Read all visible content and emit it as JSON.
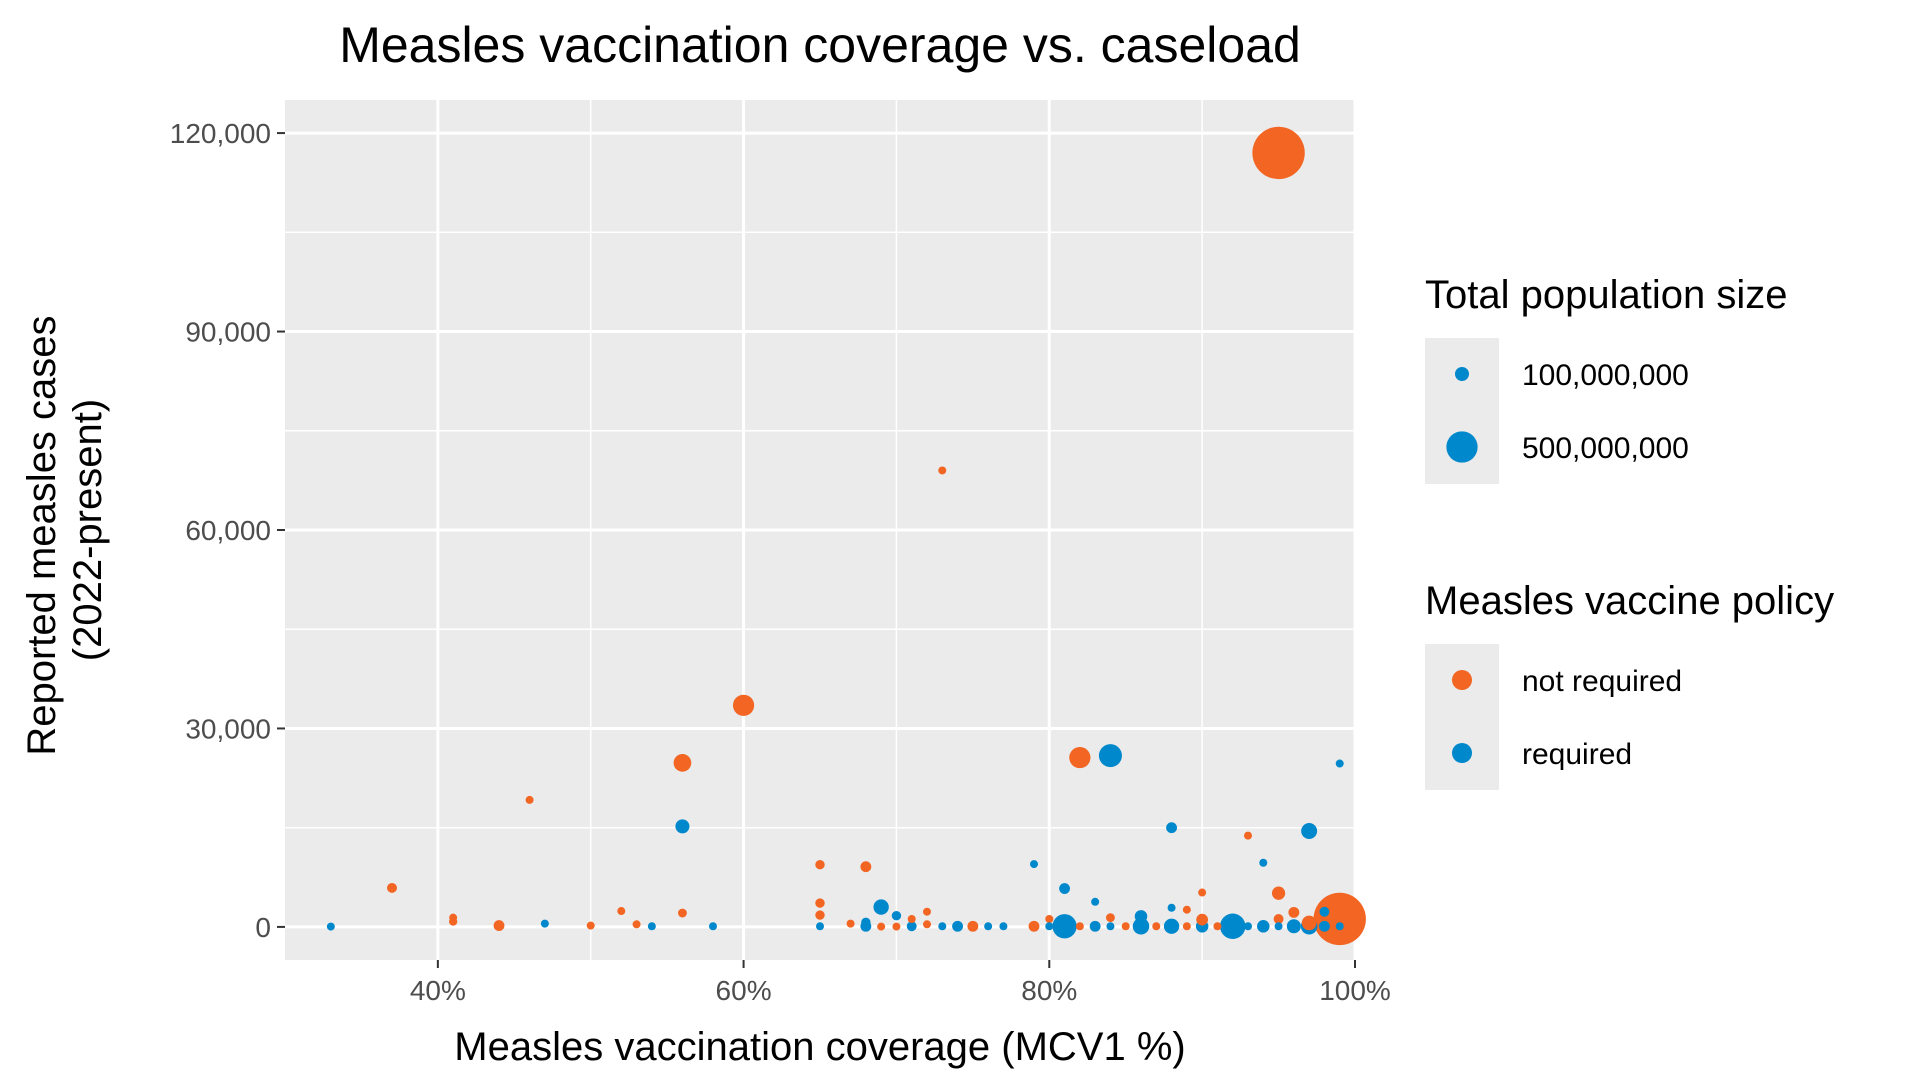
{
  "chart_data": {
    "type": "scatter",
    "title": "Measles vaccination coverage vs. caseload",
    "xlabel": "Measles vaccination coverage (MCV1 %)",
    "ylabel": [
      "Reported measles cases",
      "(2022-present)"
    ],
    "xlim": [
      30,
      100
    ],
    "ylim": [
      -5000,
      125000
    ],
    "xticks": [
      40,
      60,
      80,
      100
    ],
    "xtick_labels": [
      "40%",
      "60%",
      "80%",
      "100%"
    ],
    "yticks": [
      0,
      30000,
      60000,
      90000,
      120000
    ],
    "ytick_labels": [
      "0",
      "30,000",
      "60,000",
      "90,000",
      "120,000"
    ],
    "grid": true,
    "legend_placement": "right",
    "colors": {
      "not_required": "#f26522",
      "required": "#0088cc",
      "panel": "#ebebeb",
      "grid": "#ffffff"
    },
    "size_legend": {
      "title": "Total population size",
      "entries": [
        {
          "label": "100,000,000",
          "value": 100000000
        },
        {
          "label": "500,000,000",
          "value": 500000000
        }
      ]
    },
    "color_legend": {
      "title": "Measles vaccine policy",
      "entries": [
        {
          "label": "not required",
          "key": "not_required"
        },
        {
          "label": "required",
          "key": "required"
        }
      ]
    },
    "points": [
      {
        "x": 95,
        "y": 117000,
        "pop": 1400000000,
        "policy": "not_required"
      },
      {
        "x": 99,
        "y": 1200,
        "pop": 1400000000,
        "policy": "not_required"
      },
      {
        "x": 73,
        "y": 69000,
        "pop": 25000000,
        "policy": "not_required"
      },
      {
        "x": 60,
        "y": 33500,
        "pop": 230000000,
        "policy": "not_required"
      },
      {
        "x": 56,
        "y": 24800,
        "pop": 160000000,
        "policy": "not_required"
      },
      {
        "x": 82,
        "y": 25600,
        "pop": 230000000,
        "policy": "not_required"
      },
      {
        "x": 84,
        "y": 25900,
        "pop": 270000000,
        "policy": "required"
      },
      {
        "x": 46,
        "y": 19200,
        "pop": 25000000,
        "policy": "not_required"
      },
      {
        "x": 99,
        "y": 24700,
        "pop": 25000000,
        "policy": "required"
      },
      {
        "x": 56,
        "y": 15200,
        "pop": 100000000,
        "policy": "required"
      },
      {
        "x": 88,
        "y": 15000,
        "pop": 60000000,
        "policy": "required"
      },
      {
        "x": 97,
        "y": 14500,
        "pop": 130000000,
        "policy": "required"
      },
      {
        "x": 93,
        "y": 13800,
        "pop": 12000000,
        "policy": "not_required"
      },
      {
        "x": 94,
        "y": 9700,
        "pop": 10000000,
        "policy": "required"
      },
      {
        "x": 79,
        "y": 9500,
        "pop": 10000000,
        "policy": "required"
      },
      {
        "x": 65,
        "y": 9400,
        "pop": 45000000,
        "policy": "not_required"
      },
      {
        "x": 68,
        "y": 9100,
        "pop": 60000000,
        "policy": "not_required"
      },
      {
        "x": 37,
        "y": 5900,
        "pop": 50000000,
        "policy": "not_required"
      },
      {
        "x": 81,
        "y": 5800,
        "pop": 60000000,
        "policy": "required"
      },
      {
        "x": 90,
        "y": 5200,
        "pop": 25000000,
        "policy": "not_required"
      },
      {
        "x": 95,
        "y": 5100,
        "pop": 90000000,
        "policy": "not_required"
      },
      {
        "x": 83,
        "y": 3800,
        "pop": 25000000,
        "policy": "required"
      },
      {
        "x": 65,
        "y": 3600,
        "pop": 45000000,
        "policy": "not_required"
      },
      {
        "x": 69,
        "y": 3000,
        "pop": 120000000,
        "policy": "required"
      },
      {
        "x": 88,
        "y": 2900,
        "pop": 30000000,
        "policy": "required"
      },
      {
        "x": 89,
        "y": 2600,
        "pop": 25000000,
        "policy": "not_required"
      },
      {
        "x": 52,
        "y": 2400,
        "pop": 10000000,
        "policy": "not_required"
      },
      {
        "x": 72,
        "y": 2300,
        "pop": 25000000,
        "policy": "not_required"
      },
      {
        "x": 96,
        "y": 2200,
        "pop": 60000000,
        "policy": "not_required"
      },
      {
        "x": 98,
        "y": 2300,
        "pop": 50000000,
        "policy": "required"
      },
      {
        "x": 56,
        "y": 2100,
        "pop": 40000000,
        "policy": "not_required"
      },
      {
        "x": 65,
        "y": 1800,
        "pop": 45000000,
        "policy": "not_required"
      },
      {
        "x": 70,
        "y": 1700,
        "pop": 45000000,
        "policy": "required"
      },
      {
        "x": 86,
        "y": 1600,
        "pop": 80000000,
        "policy": "required"
      },
      {
        "x": 84,
        "y": 1400,
        "pop": 40000000,
        "policy": "not_required"
      },
      {
        "x": 41,
        "y": 1400,
        "pop": 30000000,
        "policy": "not_required"
      },
      {
        "x": 71,
        "y": 1200,
        "pop": 30000000,
        "policy": "not_required"
      },
      {
        "x": 80,
        "y": 1200,
        "pop": 30000000,
        "policy": "not_required"
      },
      {
        "x": 95,
        "y": 1200,
        "pop": 50000000,
        "policy": "not_required"
      },
      {
        "x": 90,
        "y": 1100,
        "pop": 70000000,
        "policy": "not_required"
      },
      {
        "x": 41,
        "y": 800,
        "pop": 35000000,
        "policy": "not_required"
      },
      {
        "x": 68,
        "y": 700,
        "pop": 45000000,
        "policy": "required"
      },
      {
        "x": 47,
        "y": 500,
        "pop": 30000000,
        "policy": "required"
      },
      {
        "x": 67,
        "y": 500,
        "pop": 12000000,
        "policy": "not_required"
      },
      {
        "x": 53,
        "y": 400,
        "pop": 10000000,
        "policy": "not_required"
      },
      {
        "x": 72,
        "y": 400,
        "pop": 10000000,
        "policy": "not_required"
      },
      {
        "x": 97,
        "y": 600,
        "pop": 110000000,
        "policy": "not_required"
      },
      {
        "x": 44,
        "y": 200,
        "pop": 60000000,
        "policy": "not_required"
      },
      {
        "x": 50,
        "y": 200,
        "pop": 8000000,
        "policy": "not_required"
      },
      {
        "x": 54,
        "y": 100,
        "pop": 15000000,
        "policy": "required"
      },
      {
        "x": 58,
        "y": 100,
        "pop": 15000000,
        "policy": "required"
      },
      {
        "x": 33,
        "y": 50,
        "pop": 12000000,
        "policy": "required"
      },
      {
        "x": 65,
        "y": 100,
        "pop": 25000000,
        "policy": "required"
      },
      {
        "x": 68,
        "y": 100,
        "pop": 60000000,
        "policy": "required"
      },
      {
        "x": 69,
        "y": 50,
        "pop": 25000000,
        "policy": "not_required"
      },
      {
        "x": 70,
        "y": 50,
        "pop": 8000000,
        "policy": "not_required"
      },
      {
        "x": 71,
        "y": 100,
        "pop": 50000000,
        "policy": "required"
      },
      {
        "x": 73,
        "y": 100,
        "pop": 12000000,
        "policy": "required"
      },
      {
        "x": 74,
        "y": 100,
        "pop": 60000000,
        "policy": "required"
      },
      {
        "x": 75,
        "y": 100,
        "pop": 60000000,
        "policy": "not_required"
      },
      {
        "x": 76,
        "y": 100,
        "pop": 30000000,
        "policy": "required"
      },
      {
        "x": 77,
        "y": 100,
        "pop": 25000000,
        "policy": "required"
      },
      {
        "x": 79,
        "y": 100,
        "pop": 60000000,
        "policy": "not_required"
      },
      {
        "x": 80,
        "y": 100,
        "pop": 30000000,
        "policy": "required"
      },
      {
        "x": 81,
        "y": 100,
        "pop": 300000000,
        "policy": "required"
      },
      {
        "x": 82,
        "y": 100,
        "pop": 30000000,
        "policy": "not_required"
      },
      {
        "x": 83,
        "y": 100,
        "pop": 60000000,
        "policy": "required"
      },
      {
        "x": 84,
        "y": 100,
        "pop": 15000000,
        "policy": "required"
      },
      {
        "x": 85,
        "y": 100,
        "pop": 12000000,
        "policy": "not_required"
      },
      {
        "x": 86,
        "y": 100,
        "pop": 140000000,
        "policy": "required"
      },
      {
        "x": 87,
        "y": 100,
        "pop": 12000000,
        "policy": "not_required"
      },
      {
        "x": 88,
        "y": 100,
        "pop": 120000000,
        "policy": "required"
      },
      {
        "x": 89,
        "y": 100,
        "pop": 25000000,
        "policy": "not_required"
      },
      {
        "x": 90,
        "y": 100,
        "pop": 80000000,
        "policy": "required"
      },
      {
        "x": 91,
        "y": 100,
        "pop": 30000000,
        "policy": "not_required"
      },
      {
        "x": 92,
        "y": 100,
        "pop": 330000000,
        "policy": "required"
      },
      {
        "x": 93,
        "y": 100,
        "pop": 25000000,
        "policy": "required"
      },
      {
        "x": 94,
        "y": 100,
        "pop": 80000000,
        "policy": "required"
      },
      {
        "x": 95,
        "y": 100,
        "pop": 30000000,
        "policy": "required"
      },
      {
        "x": 96,
        "y": 100,
        "pop": 100000000,
        "policy": "required"
      },
      {
        "x": 97,
        "y": 100,
        "pop": 140000000,
        "policy": "required"
      },
      {
        "x": 98,
        "y": 100,
        "pop": 60000000,
        "policy": "required"
      },
      {
        "x": 99,
        "y": 100,
        "pop": 12000000,
        "policy": "required"
      }
    ]
  }
}
